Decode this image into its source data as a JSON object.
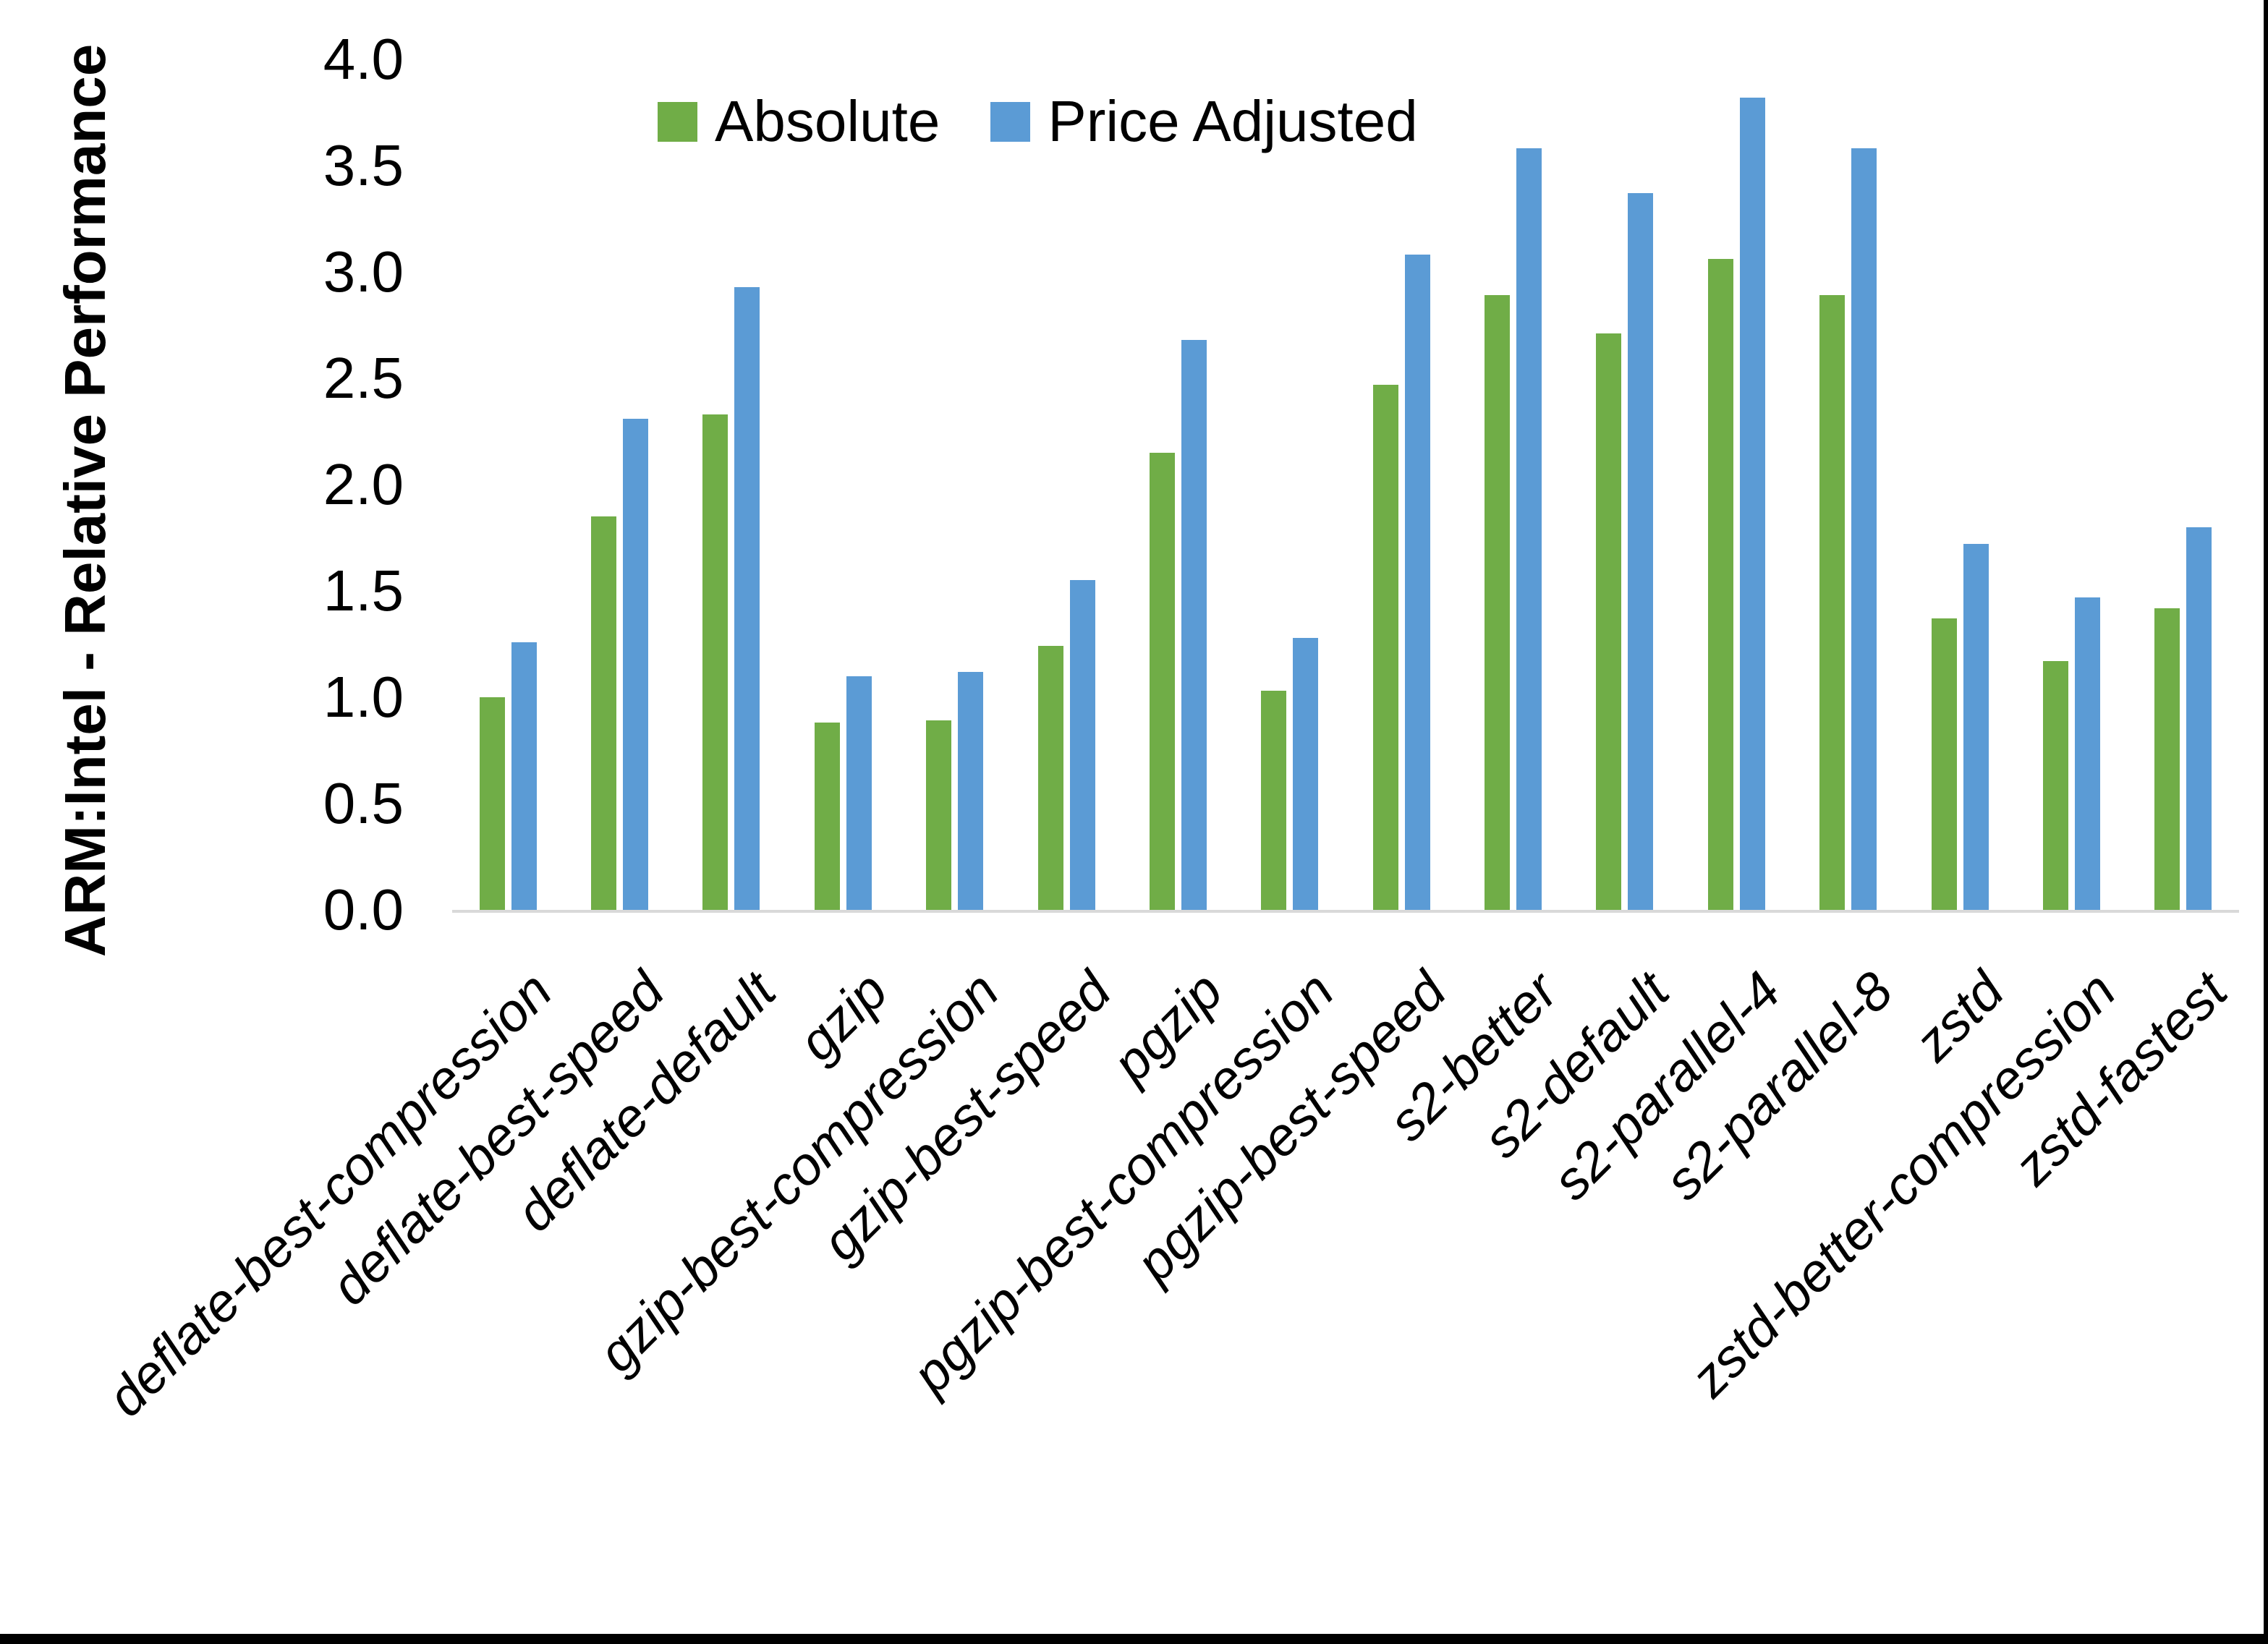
{
  "figure": {
    "background": "#FFFFFF",
    "frame_border_color": "#000000",
    "axis_line_color": "#D9D9D9"
  },
  "legend": {
    "items": [
      {
        "label": "Absolute",
        "color": "#70AD47"
      },
      {
        "label": "Price Adjusted",
        "color": "#5B9BD5"
      }
    ]
  },
  "chart_data": {
    "type": "bar",
    "title": "",
    "xlabel": "",
    "ylabel": "ARM:Intel - Relative Performance",
    "ylim": [
      0.0,
      4.0
    ],
    "ytick_labels": [
      "0.0",
      "0.5",
      "1.0",
      "1.5",
      "2.0",
      "2.5",
      "3.0",
      "3.5",
      "4.0"
    ],
    "grid": false,
    "legend_position": "top-center",
    "categories": [
      "deflate-best-compression",
      "deflate-best-speed",
      "deflate-default",
      "gzip",
      "gzip-best-compression",
      "gzip-best-speed",
      "pgzip",
      "pgzip-best-compression",
      "pgzip-best-speed",
      "s2-better",
      "s2-default",
      "s2-parallel-4",
      "s2-parallel-8",
      "zstd",
      "zstd-better-compression",
      "zstd-fastest"
    ],
    "series": [
      {
        "name": "Absolute",
        "color": "#70AD47",
        "values": [
          1.0,
          1.85,
          2.33,
          0.88,
          0.89,
          1.24,
          2.15,
          1.03,
          2.47,
          2.89,
          2.71,
          3.06,
          2.89,
          1.37,
          1.17,
          1.42
        ]
      },
      {
        "name": "Price Adjusted",
        "color": "#5B9BD5",
        "values": [
          1.26,
          2.31,
          2.93,
          1.1,
          1.12,
          1.55,
          2.68,
          1.28,
          3.08,
          3.58,
          3.37,
          3.82,
          3.58,
          1.72,
          1.47,
          1.8
        ]
      }
    ]
  }
}
